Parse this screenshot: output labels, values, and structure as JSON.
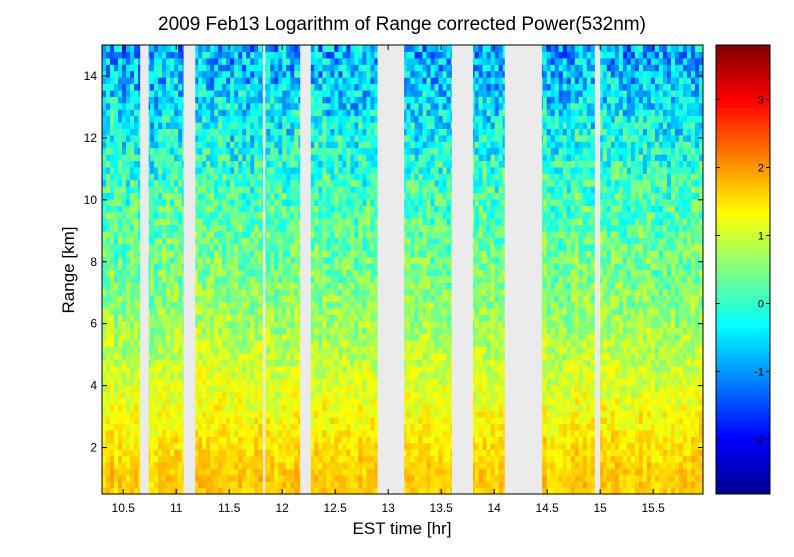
{
  "chart_data": {
    "type": "heatmap",
    "title": "2009 Feb13  Logarithm of Range corrected Power(532nm)",
    "xlabel": "EST time [hr]",
    "ylabel": "Range [km]",
    "xlim": [
      10.3,
      15.97
    ],
    "ylim": [
      0.5,
      15.0
    ],
    "xticks": [
      "10.5",
      "11",
      "11.5",
      "12",
      "12.5",
      "13",
      "13.5",
      "14",
      "14.5",
      "15",
      "15.5"
    ],
    "xtick_values": [
      10.5,
      11,
      11.5,
      12,
      12.5,
      13,
      13.5,
      14,
      14.5,
      15,
      15.5
    ],
    "yticks": [
      "2",
      "4",
      "6",
      "8",
      "10",
      "12",
      "14"
    ],
    "ytick_values": [
      2,
      4,
      6,
      8,
      10,
      12,
      14
    ],
    "colorbar": {
      "colormap": "jet",
      "clim": [
        -2.8,
        3.8
      ],
      "ticks": [
        "-2",
        "-1",
        "0",
        "1",
        "2",
        "3"
      ],
      "tick_values": [
        -2,
        -1,
        0,
        1,
        2,
        3
      ]
    },
    "missing_data_intervals_hr": [
      [
        10.66,
        10.74
      ],
      [
        11.07,
        11.18
      ],
      [
        11.82,
        11.84
      ],
      [
        12.17,
        12.27
      ],
      [
        12.9,
        13.15
      ],
      [
        13.6,
        13.8
      ],
      [
        14.1,
        14.45
      ],
      [
        14.95,
        15.0
      ]
    ],
    "value_profile": {
      "range_km": [
        0.5,
        1.0,
        2.0,
        3.0,
        4.0,
        6.0,
        8.0,
        10.0,
        12.0,
        13.0,
        14.0,
        15.0
      ],
      "log_power": [
        1.6,
        1.7,
        1.5,
        1.3,
        1.1,
        0.7,
        0.4,
        0.15,
        -0.25,
        -0.45,
        -0.7,
        -0.9
      ]
    },
    "missing_color": "#ebebeb"
  }
}
